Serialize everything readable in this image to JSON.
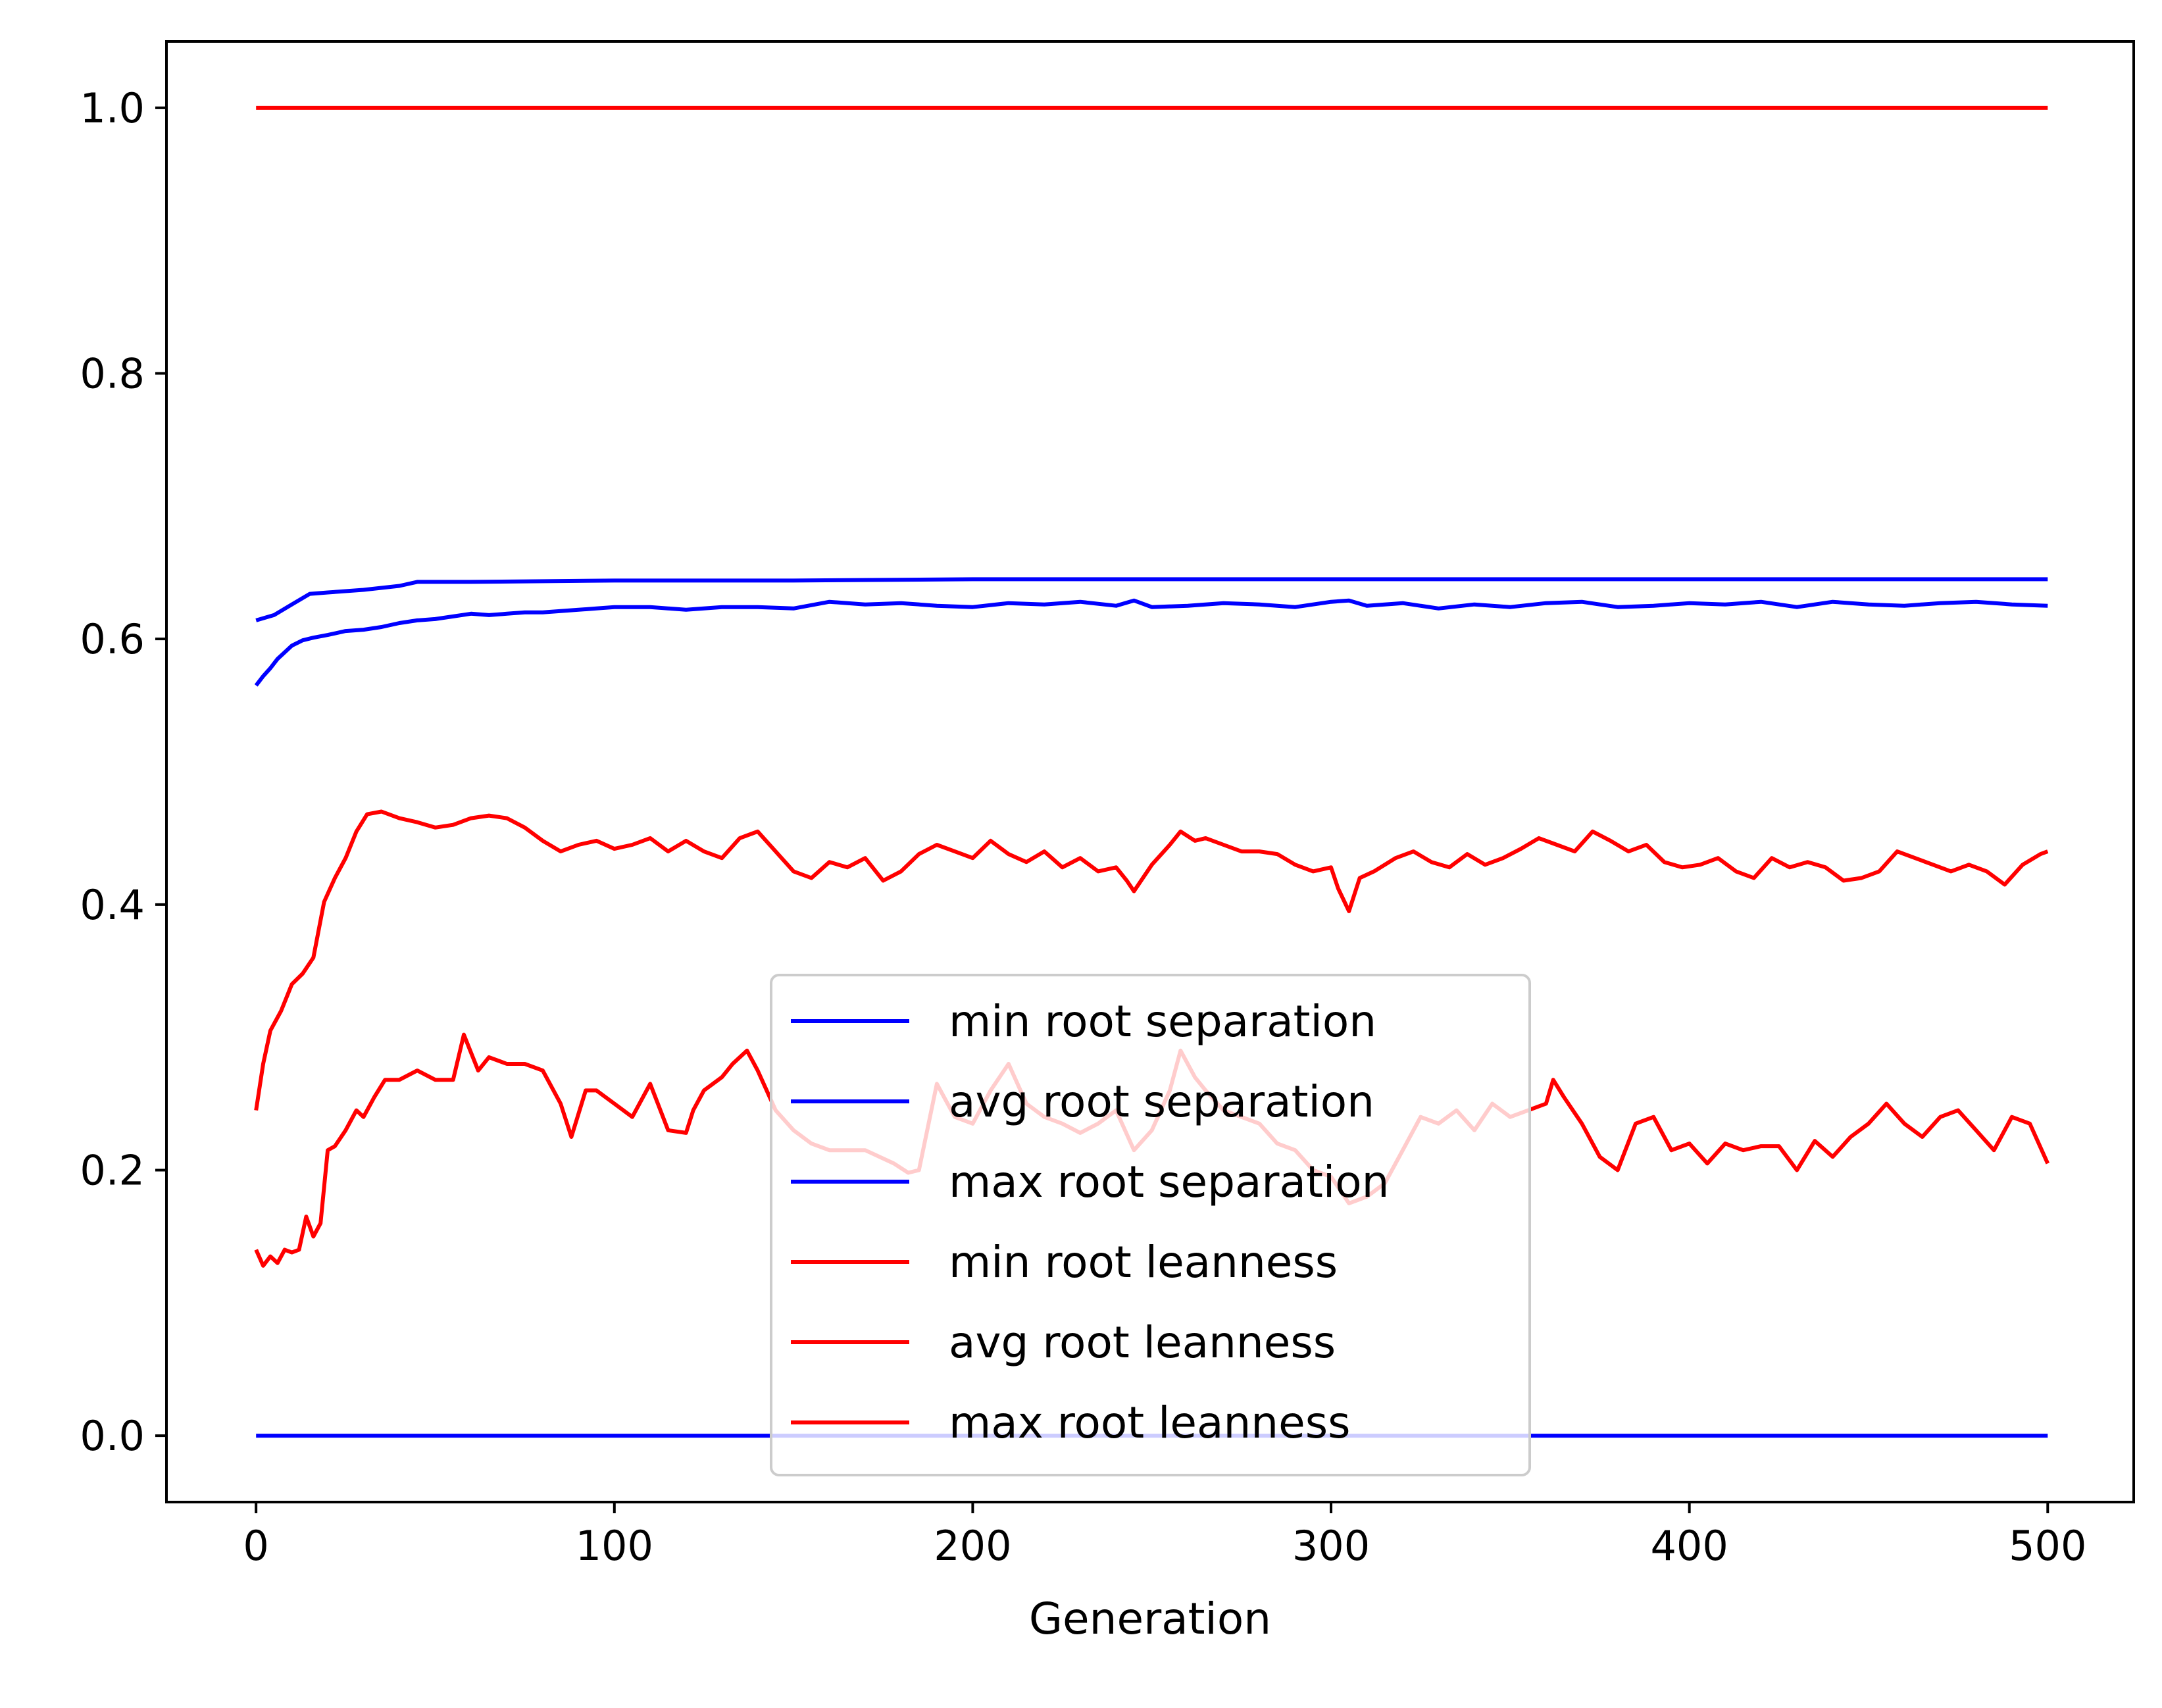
{
  "chart_data": {
    "type": "line",
    "title": "",
    "xlabel": "Generation",
    "ylabel": "",
    "xlim": [
      -25,
      524
    ],
    "ylim": [
      -0.05,
      1.05
    ],
    "xticks": [
      0,
      100,
      200,
      300,
      400,
      500
    ],
    "xtick_labels": [
      "0",
      "100",
      "200",
      "300",
      "400",
      "500"
    ],
    "yticks": [
      0.0,
      0.2,
      0.4,
      0.6,
      0.8,
      1.0
    ],
    "ytick_labels": [
      "0.0",
      "0.2",
      "0.4",
      "0.6",
      "0.8",
      "1.0"
    ],
    "grid": false,
    "legend_position": "lower center",
    "series": [
      {
        "name": "min root separation",
        "color": "#0000ff",
        "x": [
          0,
          500
        ],
        "y": [
          0.0,
          0.0
        ]
      },
      {
        "name": "avg root separation",
        "color": "#0000ff",
        "x": [
          0,
          2,
          4,
          6,
          8,
          10,
          13,
          16,
          20,
          25,
          30,
          35,
          40,
          45,
          50,
          55,
          60,
          65,
          70,
          75,
          80,
          85,
          90,
          95,
          100,
          110,
          120,
          130,
          140,
          150,
          160,
          170,
          180,
          190,
          200,
          210,
          220,
          230,
          240,
          245,
          250,
          260,
          270,
          280,
          290,
          300,
          305,
          310,
          320,
          330,
          340,
          350,
          360,
          370,
          380,
          390,
          400,
          410,
          420,
          430,
          440,
          450,
          460,
          470,
          480,
          490,
          500
        ],
        "y": [
          0.565,
          0.572,
          0.578,
          0.585,
          0.59,
          0.595,
          0.599,
          0.601,
          0.603,
          0.606,
          0.607,
          0.609,
          0.612,
          0.614,
          0.615,
          0.617,
          0.619,
          0.618,
          0.619,
          0.62,
          0.62,
          0.621,
          0.622,
          0.623,
          0.624,
          0.624,
          0.622,
          0.624,
          0.624,
          0.623,
          0.628,
          0.626,
          0.627,
          0.625,
          0.624,
          0.627,
          0.626,
          0.628,
          0.625,
          0.629,
          0.624,
          0.625,
          0.627,
          0.626,
          0.624,
          0.628,
          0.629,
          0.625,
          0.627,
          0.623,
          0.626,
          0.624,
          0.627,
          0.628,
          0.624,
          0.625,
          0.627,
          0.626,
          0.628,
          0.624,
          0.628,
          0.626,
          0.625,
          0.627,
          0.628,
          0.626,
          0.625
        ]
      },
      {
        "name": "max root separation",
        "color": "#0000ff",
        "x": [
          0,
          5,
          10,
          15,
          20,
          30,
          40,
          45,
          60,
          100,
          150,
          200,
          250,
          300,
          350,
          400,
          450,
          500
        ],
        "y": [
          0.614,
          0.618,
          0.626,
          0.634,
          0.635,
          0.637,
          0.64,
          0.643,
          0.643,
          0.644,
          0.644,
          0.645,
          0.645,
          0.645,
          0.645,
          0.645,
          0.645,
          0.645
        ]
      },
      {
        "name": "min root leanness",
        "color": "#ff0000",
        "x": [
          0,
          2,
          4,
          6,
          8,
          10,
          12,
          14,
          16,
          18,
          20,
          22,
          25,
          28,
          30,
          33,
          36,
          40,
          45,
          50,
          55,
          58,
          62,
          65,
          70,
          75,
          80,
          85,
          88,
          92,
          95,
          100,
          105,
          110,
          115,
          120,
          122,
          125,
          130,
          133,
          137,
          140,
          145,
          150,
          155,
          160,
          170,
          178,
          182,
          185,
          190,
          195,
          200,
          205,
          210,
          215,
          220,
          225,
          230,
          235,
          240,
          245,
          250,
          255,
          258,
          262,
          265,
          270,
          275,
          280,
          285,
          290,
          295,
          300,
          305,
          310,
          315,
          320,
          325,
          330,
          335,
          340,
          345,
          350,
          355,
          360,
          362,
          365,
          370,
          375,
          380,
          385,
          390,
          395,
          400,
          405,
          410,
          415,
          420,
          425,
          430,
          435,
          440,
          445,
          450,
          455,
          460,
          465,
          470,
          475,
          480,
          485,
          490,
          495,
          500
        ],
        "y": [
          0.14,
          0.128,
          0.135,
          0.13,
          0.14,
          0.138,
          0.14,
          0.165,
          0.15,
          0.16,
          0.215,
          0.218,
          0.23,
          0.245,
          0.24,
          0.255,
          0.268,
          0.268,
          0.275,
          0.268,
          0.268,
          0.302,
          0.275,
          0.285,
          0.28,
          0.28,
          0.275,
          0.25,
          0.225,
          0.26,
          0.26,
          0.25,
          0.24,
          0.265,
          0.23,
          0.228,
          0.245,
          0.26,
          0.27,
          0.28,
          0.29,
          0.275,
          0.245,
          0.23,
          0.22,
          0.215,
          0.215,
          0.205,
          0.198,
          0.2,
          0.265,
          0.24,
          0.235,
          0.26,
          0.28,
          0.25,
          0.24,
          0.235,
          0.228,
          0.235,
          0.245,
          0.215,
          0.23,
          0.26,
          0.29,
          0.27,
          0.26,
          0.245,
          0.24,
          0.235,
          0.22,
          0.215,
          0.2,
          0.195,
          0.175,
          0.18,
          0.19,
          0.215,
          0.24,
          0.235,
          0.245,
          0.23,
          0.25,
          0.24,
          0.245,
          0.25,
          0.268,
          0.255,
          0.235,
          0.21,
          0.2,
          0.235,
          0.24,
          0.215,
          0.22,
          0.205,
          0.22,
          0.215,
          0.218,
          0.218,
          0.2,
          0.222,
          0.21,
          0.225,
          0.235,
          0.25,
          0.235,
          0.225,
          0.24,
          0.245,
          0.23,
          0.215,
          0.24,
          0.235,
          0.205
        ]
      },
      {
        "name": "avg root leanness",
        "color": "#ff0000",
        "x": [
          0,
          2,
          4,
          7,
          10,
          13,
          16,
          19,
          22,
          25,
          28,
          31,
          35,
          40,
          45,
          50,
          55,
          60,
          65,
          70,
          75,
          80,
          85,
          90,
          95,
          100,
          105,
          110,
          115,
          120,
          125,
          130,
          135,
          140,
          145,
          150,
          155,
          160,
          165,
          170,
          175,
          180,
          185,
          190,
          195,
          200,
          205,
          210,
          215,
          220,
          225,
          230,
          235,
          240,
          243,
          245,
          250,
          255,
          258,
          262,
          265,
          270,
          275,
          280,
          285,
          290,
          295,
          300,
          302,
          305,
          308,
          312,
          318,
          323,
          328,
          333,
          338,
          343,
          348,
          353,
          358,
          363,
          368,
          373,
          378,
          383,
          388,
          393,
          398,
          403,
          408,
          413,
          418,
          423,
          428,
          433,
          438,
          443,
          448,
          453,
          458,
          463,
          468,
          473,
          478,
          483,
          488,
          493,
          498,
          500
        ],
        "y": [
          0.245,
          0.28,
          0.305,
          0.32,
          0.34,
          0.348,
          0.36,
          0.402,
          0.42,
          0.435,
          0.455,
          0.468,
          0.47,
          0.465,
          0.462,
          0.458,
          0.46,
          0.465,
          0.467,
          0.465,
          0.458,
          0.448,
          0.44,
          0.445,
          0.448,
          0.442,
          0.445,
          0.45,
          0.44,
          0.448,
          0.44,
          0.435,
          0.45,
          0.455,
          0.44,
          0.425,
          0.42,
          0.432,
          0.428,
          0.435,
          0.418,
          0.425,
          0.438,
          0.445,
          0.44,
          0.435,
          0.448,
          0.438,
          0.432,
          0.44,
          0.428,
          0.435,
          0.425,
          0.428,
          0.418,
          0.41,
          0.43,
          0.445,
          0.455,
          0.448,
          0.45,
          0.445,
          0.44,
          0.44,
          0.438,
          0.43,
          0.425,
          0.428,
          0.412,
          0.395,
          0.42,
          0.425,
          0.435,
          0.44,
          0.432,
          0.428,
          0.438,
          0.43,
          0.435,
          0.442,
          0.45,
          0.445,
          0.44,
          0.455,
          0.448,
          0.44,
          0.445,
          0.432,
          0.428,
          0.43,
          0.435,
          0.425,
          0.42,
          0.435,
          0.428,
          0.432,
          0.428,
          0.418,
          0.42,
          0.425,
          0.44,
          0.435,
          0.43,
          0.425,
          0.43,
          0.425,
          0.415,
          0.43,
          0.438,
          0.44
        ]
      },
      {
        "name": "max root leanness",
        "color": "#ff0000",
        "x": [
          0,
          500
        ],
        "y": [
          1.0,
          1.0
        ]
      }
    ]
  }
}
